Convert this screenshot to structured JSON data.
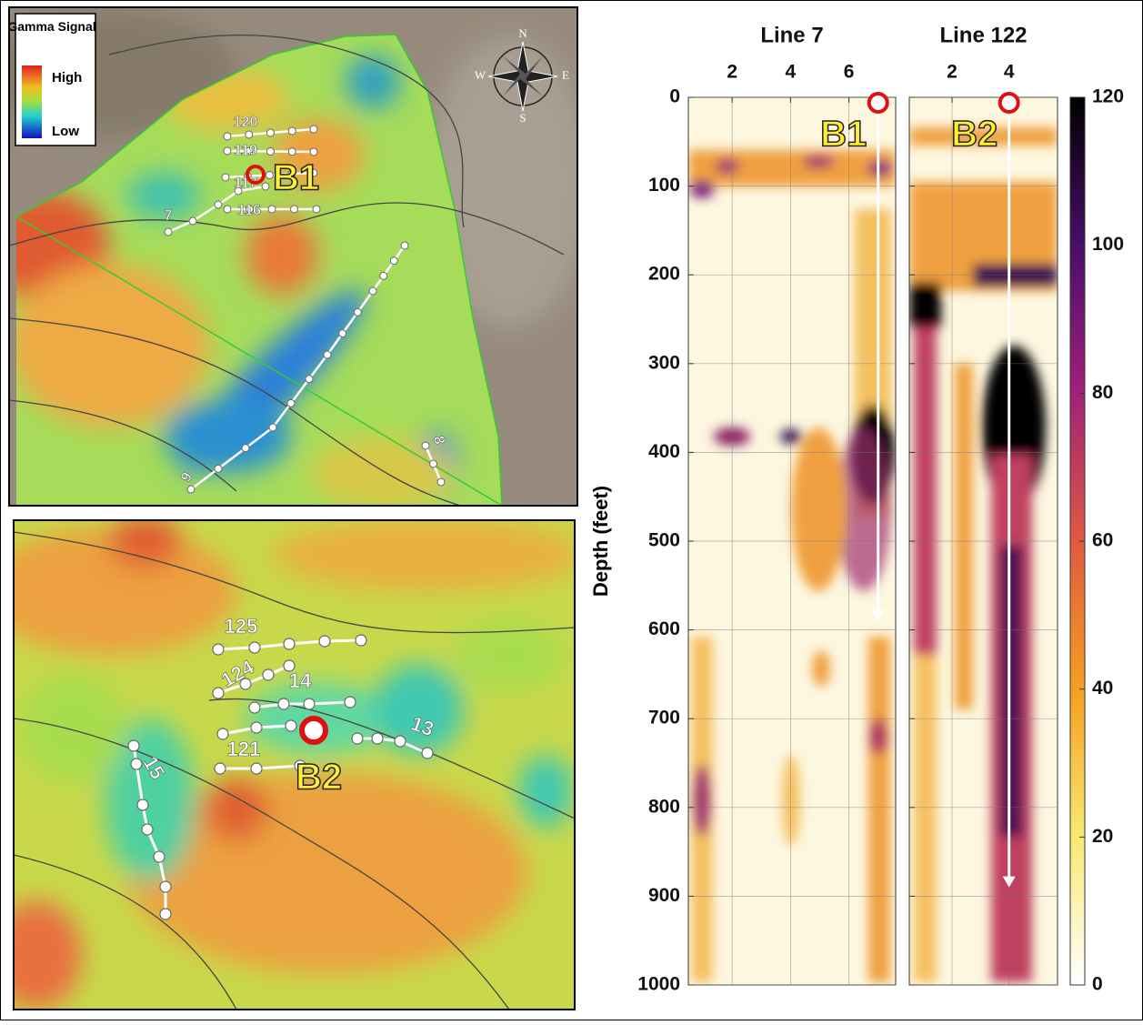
{
  "map_top": {
    "legend": {
      "title": "Gamma Signal",
      "high": "High",
      "low": "Low"
    },
    "compass": {
      "n": "N",
      "s": "S",
      "e": "E",
      "w": "W"
    },
    "line_labels": [
      "120",
      "119",
      "117",
      "116",
      "7",
      "9",
      "8"
    ],
    "borehole": "B1"
  },
  "map_bottom": {
    "line_labels": [
      "125",
      "124",
      "14",
      "13",
      "121",
      "15"
    ],
    "borehole": "B2"
  },
  "sections": {
    "y_label": "Depth (feet)",
    "ylim": [
      0,
      1000
    ],
    "yticks": [
      0,
      100,
      200,
      300,
      400,
      500,
      600,
      700,
      800,
      900,
      1000
    ],
    "grid": true,
    "panels": [
      {
        "title": "Line 7",
        "xlim": [
          0.5,
          7.6
        ],
        "xticks": [
          2,
          4,
          6
        ],
        "borehole": {
          "label": "B1",
          "x": 7,
          "arrow_end": 590
        }
      },
      {
        "title": "Line 122",
        "xlim": [
          0.5,
          5.7
        ],
        "xticks": [
          2,
          4
        ],
        "borehole": {
          "label": "B2",
          "x": 4,
          "arrow_end": 890
        }
      }
    ],
    "colorbar": {
      "lim": [
        0,
        120
      ],
      "ticks": [
        0,
        20,
        40,
        60,
        80,
        100,
        120
      ]
    }
  }
}
